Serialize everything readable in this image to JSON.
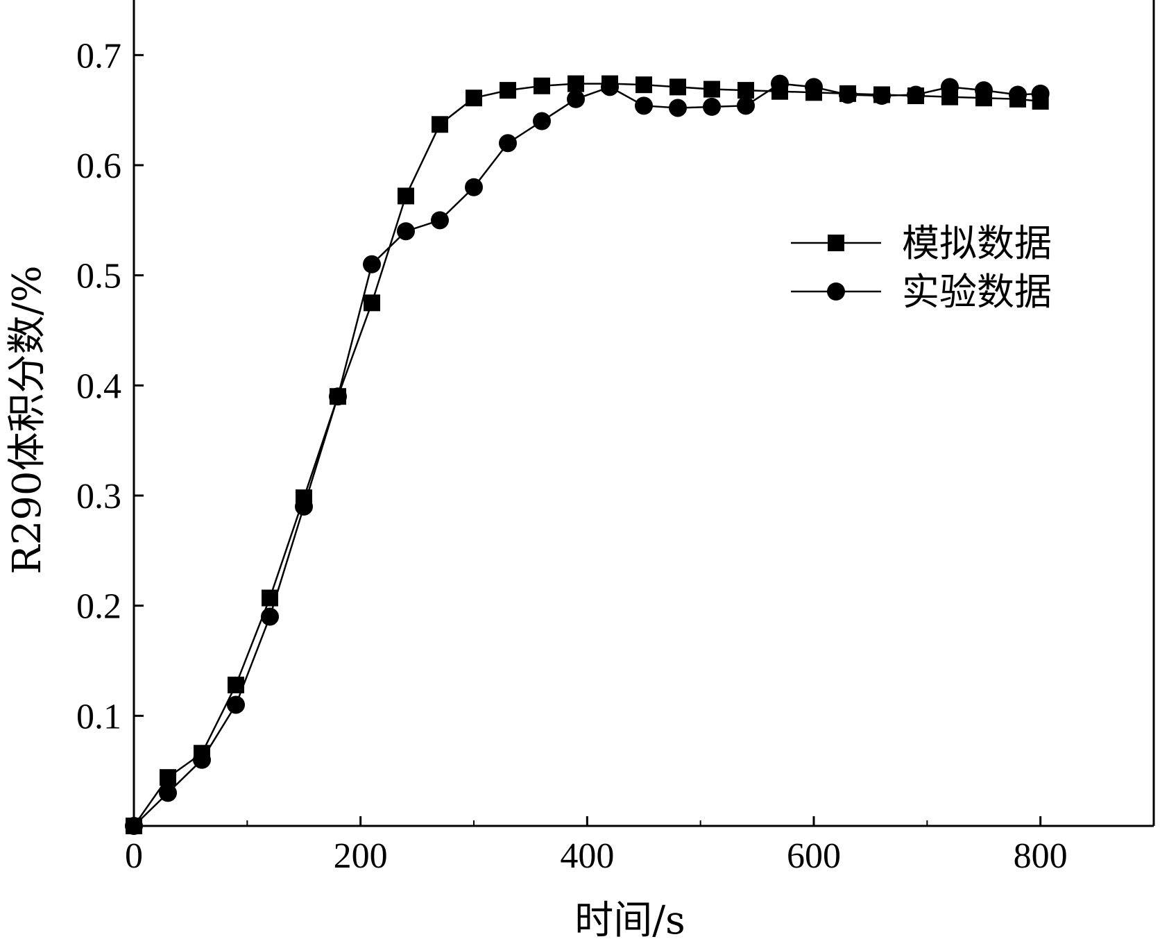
{
  "chart_data": {
    "type": "line",
    "xlabel": "时间/s",
    "ylabel": "R290体积分数/%",
    "xlim": [
      0,
      900
    ],
    "ylim": [
      0,
      0.75
    ],
    "xticks": [
      0,
      200,
      400,
      600,
      800
    ],
    "xtick_labels": [
      "0",
      "200",
      "400",
      "600",
      "800"
    ],
    "yticks": [
      0.1,
      0.2,
      0.3,
      0.4,
      0.5,
      0.6,
      0.7
    ],
    "ytick_labels": [
      "0.1",
      "0.2",
      "0.3",
      "0.4",
      "0.5",
      "0.6",
      "0.7"
    ],
    "grid": false,
    "legend_position": "right",
    "series": [
      {
        "name": "模拟数据",
        "marker": "square",
        "color": "#000000",
        "x": [
          0,
          30,
          60,
          90,
          120,
          150,
          180,
          210,
          240,
          270,
          300,
          330,
          360,
          390,
          420,
          450,
          480,
          510,
          540,
          570,
          600,
          630,
          660,
          690,
          720,
          750,
          780,
          800
        ],
        "y": [
          0.0,
          0.044,
          0.066,
          0.128,
          0.207,
          0.298,
          0.39,
          0.475,
          0.572,
          0.637,
          0.661,
          0.668,
          0.672,
          0.674,
          0.674,
          0.673,
          0.671,
          0.669,
          0.668,
          0.667,
          0.666,
          0.665,
          0.664,
          0.663,
          0.662,
          0.661,
          0.66,
          0.658
        ]
      },
      {
        "name": "实验数据",
        "marker": "circle",
        "color": "#000000",
        "x": [
          0,
          30,
          60,
          90,
          120,
          150,
          180,
          210,
          240,
          270,
          300,
          330,
          360,
          390,
          420,
          450,
          480,
          510,
          540,
          570,
          600,
          630,
          660,
          690,
          720,
          750,
          780,
          800
        ],
        "y": [
          0.0,
          0.03,
          0.06,
          0.11,
          0.19,
          0.29,
          0.39,
          0.51,
          0.54,
          0.55,
          0.58,
          0.62,
          0.64,
          0.66,
          0.671,
          0.654,
          0.652,
          0.653,
          0.654,
          0.674,
          0.671,
          0.664,
          0.663,
          0.664,
          0.671,
          0.668,
          0.664,
          0.665
        ]
      }
    ]
  }
}
